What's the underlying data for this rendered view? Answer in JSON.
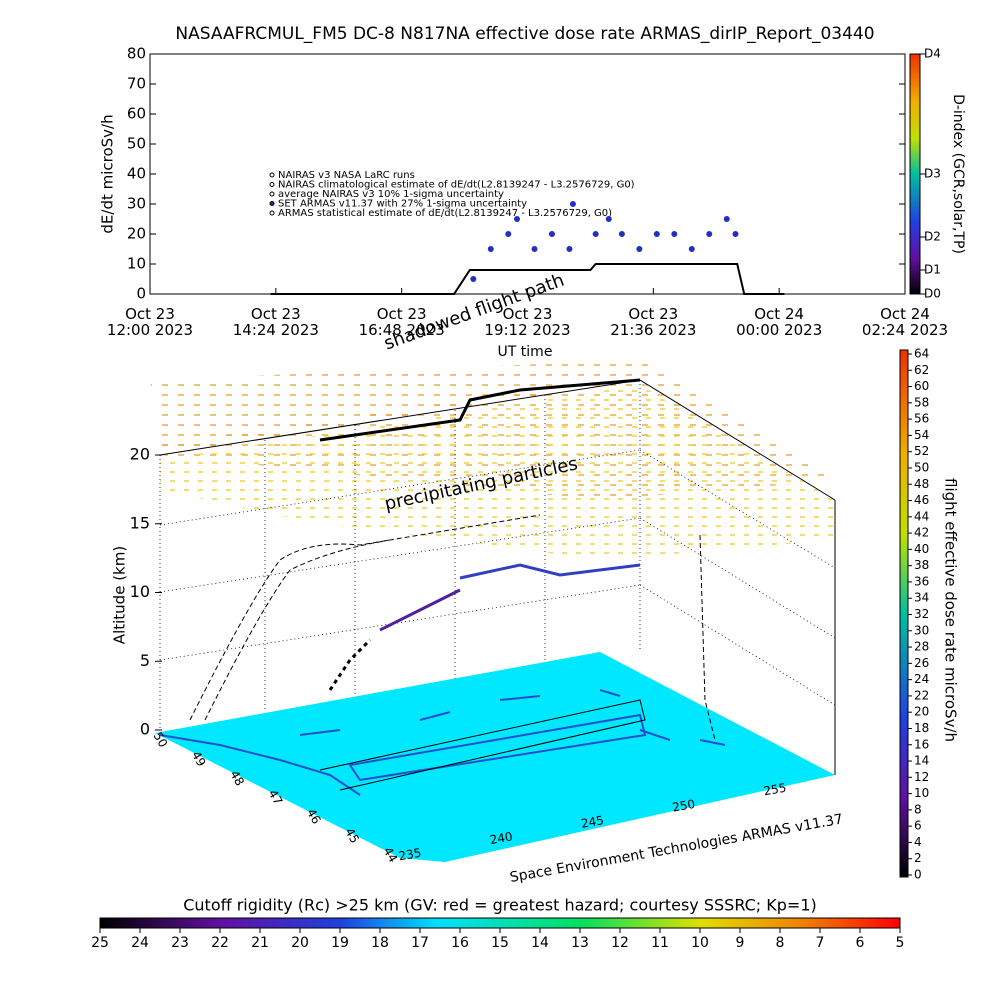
{
  "chart_data": [
    {
      "type": "line",
      "title": "NASAAFRCMUL_FM5 DC-8    N817NA effective dose rate ARMAS_dirIP_Report_03440",
      "y_label": "dE/dt microSv/h",
      "x_label": "UT time",
      "legend": [
        "NAIRAS v3 NASA LaRC runs",
        "NAIRAS climatological estimate of dE/dt(L2.8139247 - L3.2576729, G0)",
        "average NAIRAS v3 10% 1-sigma uncertainty",
        "SET ARMAS v11.37 with 27% 1-sigma uncertainty",
        "ARMAS statistical estimate of dE/dt(L2.8139247 - L3.2576729, G0)"
      ],
      "xlim": [
        "2023-10-23T12:00",
        "2023-10-24T02:24"
      ],
      "xticks": [
        {
          "value": "2023-10-23T12:00",
          "label": "Oct 23\n12:00 2023"
        },
        {
          "value": "2023-10-23T14:24",
          "label": "Oct 23\n14:24 2023"
        },
        {
          "value": "2023-10-23T16:48",
          "label": "Oct 23\n16:48 2023"
        },
        {
          "value": "2023-10-23T19:12",
          "label": "Oct 23\n19:12 2023"
        },
        {
          "value": "2023-10-23T21:36",
          "label": "Oct 23\n21:36 2023"
        },
        {
          "value": "2023-10-24T00:00",
          "label": "Oct 24\n00:00 2023"
        },
        {
          "value": "2023-10-24T02:24",
          "label": "Oct 24\n02:24 2023"
        }
      ],
      "ylim": [
        0,
        80
      ],
      "yticks": [
        0,
        10,
        20,
        30,
        40,
        50,
        60,
        70,
        80
      ],
      "colorbar_label": "D-index (GCR,solar,TP)",
      "colorbar_ticks": [
        {
          "value": 0,
          "label": "D0"
        },
        {
          "value": 8,
          "label": "D1"
        },
        {
          "value": 19,
          "label": "D2"
        },
        {
          "value": 40,
          "label": "D3"
        },
        {
          "value": 80,
          "label": "D4"
        }
      ],
      "series": [
        {
          "name": "NAIRAS climatological estimate of dE/dt(L2.8139247 - L3.2576729, G0)",
          "color": "#000000",
          "style": "line",
          "x": [
            "2023-10-23T14:18",
            "2023-10-23T17:48",
            "2023-10-23T18:06",
            "2023-10-23T20:24",
            "2023-10-23T20:30",
            "2023-10-23T23:12",
            "2023-10-23T23:20",
            "2023-10-24T00:06"
          ],
          "values": [
            0,
            0,
            8,
            8,
            10,
            10,
            0,
            0
          ]
        },
        {
          "name": "SET ARMAS v11.37 with 27% 1-sigma uncertainty",
          "color": "#2030c0",
          "style": "points",
          "x": [
            "2023-10-23T18:10",
            "2023-10-23T18:30",
            "2023-10-23T18:50",
            "2023-10-23T19:00",
            "2023-10-23T19:20",
            "2023-10-23T19:40",
            "2023-10-23T20:00",
            "2023-10-23T20:04",
            "2023-10-23T20:30",
            "2023-10-23T20:45",
            "2023-10-23T21:00",
            "2023-10-23T21:20",
            "2023-10-23T21:40",
            "2023-10-23T22:00",
            "2023-10-23T22:20",
            "2023-10-23T22:40",
            "2023-10-23T23:00",
            "2023-10-23T23:10"
          ],
          "values": [
            5,
            15,
            20,
            25,
            15,
            20,
            15,
            30,
            20,
            25,
            20,
            15,
            20,
            20,
            15,
            20,
            25,
            20
          ]
        }
      ]
    },
    {
      "type": "surface3d",
      "z_label": "Altitude (km)",
      "zlim": [
        0,
        20
      ],
      "zticks": [
        0,
        5,
        10,
        15,
        20
      ],
      "xlim": [
        235,
        255
      ],
      "xticks": [
        235,
        240,
        245,
        250,
        255
      ],
      "ylim": [
        44,
        50
      ],
      "yticks": [
        44,
        45,
        46,
        47,
        48,
        49,
        50
      ],
      "annotations": [
        "precipitating particles",
        "shadowed flight path"
      ],
      "credit": "Space Environment Technologies ARMAS v11.37",
      "colorbar_label": "flight effective dose rate microSv/h",
      "colorbar_lim": [
        0,
        64
      ],
      "colorbar_ticks": [
        0,
        2,
        4,
        6,
        8,
        10,
        12,
        14,
        16,
        18,
        20,
        22,
        24,
        26,
        28,
        30,
        32,
        34,
        36,
        38,
        40,
        42,
        44,
        46,
        48,
        50,
        52,
        54,
        56,
        58,
        60,
        62,
        64
      ],
      "rc_label": "Cutoff rigidity (Rc) >25 km (GV: red = greatest hazard; courtesy SSSRC; Kp=1)",
      "rc_lim": [
        25,
        5
      ],
      "rc_ticks": [
        25,
        24,
        23,
        22,
        21,
        20,
        19,
        18,
        17,
        16,
        15,
        14,
        13,
        12,
        11,
        10,
        9,
        8,
        7,
        6,
        5
      ]
    }
  ]
}
